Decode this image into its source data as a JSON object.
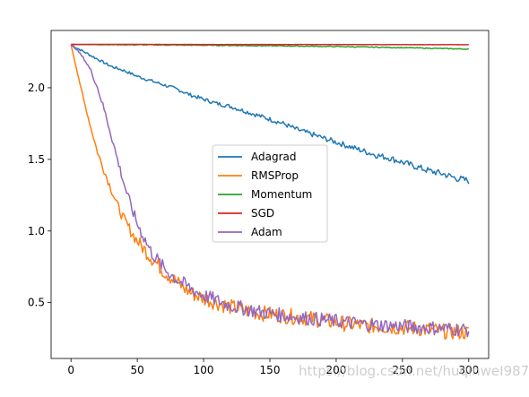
{
  "chart_data": {
    "type": "line",
    "title": "",
    "xlabel": "",
    "ylabel": "",
    "xlim": [
      -15,
      315
    ],
    "ylim": [
      0.11,
      2.4
    ],
    "x_ticks": [
      0,
      50,
      100,
      150,
      200,
      250,
      300
    ],
    "y_ticks": [
      0.5,
      1.0,
      1.5,
      2.0
    ],
    "x_tick_labels": [
      "0",
      "50",
      "100",
      "150",
      "200",
      "250",
      "300"
    ],
    "y_tick_labels": [
      "0.5",
      "1.0",
      "1.5",
      "2.0"
    ],
    "legend_position": "center",
    "grid": false,
    "series": [
      {
        "name": "Adagrad",
        "color": "#1f77b4",
        "x": [
          0,
          10,
          20,
          30,
          40,
          50,
          60,
          70,
          80,
          90,
          100,
          110,
          120,
          130,
          140,
          150,
          160,
          170,
          180,
          190,
          200,
          210,
          220,
          230,
          240,
          250,
          260,
          270,
          280,
          290,
          300
        ],
        "y": [
          2.3,
          2.25,
          2.2,
          2.15,
          2.12,
          2.08,
          2.05,
          2.02,
          1.99,
          1.95,
          1.92,
          1.89,
          1.87,
          1.84,
          1.81,
          1.78,
          1.75,
          1.71,
          1.68,
          1.65,
          1.62,
          1.59,
          1.56,
          1.53,
          1.51,
          1.48,
          1.45,
          1.42,
          1.4,
          1.37,
          1.35
        ]
      },
      {
        "name": "RMSProp",
        "color": "#ff7f0e",
        "x": [
          0,
          5,
          10,
          15,
          20,
          25,
          30,
          35,
          40,
          45,
          50,
          60,
          70,
          80,
          90,
          100,
          120,
          140,
          160,
          180,
          200,
          220,
          240,
          260,
          280,
          300
        ],
        "y": [
          2.3,
          2.1,
          1.9,
          1.72,
          1.55,
          1.42,
          1.3,
          1.18,
          1.08,
          1.0,
          0.93,
          0.82,
          0.72,
          0.64,
          0.57,
          0.53,
          0.47,
          0.43,
          0.41,
          0.39,
          0.36,
          0.34,
          0.33,
          0.32,
          0.3,
          0.29
        ]
      },
      {
        "name": "Momentum",
        "color": "#2ca02c",
        "x": [
          0,
          50,
          100,
          150,
          200,
          250,
          300
        ],
        "y": [
          2.302,
          2.3,
          2.297,
          2.293,
          2.288,
          2.28,
          2.27
        ]
      },
      {
        "name": "SGD",
        "color": "#d62728",
        "x": [
          0,
          50,
          100,
          150,
          200,
          250,
          300
        ],
        "y": [
          2.303,
          2.303,
          2.302,
          2.302,
          2.302,
          2.301,
          2.301
        ]
      },
      {
        "name": "Adam",
        "color": "#9467bd",
        "x": [
          0,
          5,
          10,
          15,
          20,
          25,
          30,
          35,
          40,
          45,
          50,
          60,
          70,
          80,
          90,
          100,
          120,
          140,
          160,
          180,
          200,
          220,
          240,
          260,
          280,
          300
        ],
        "y": [
          2.3,
          2.26,
          2.2,
          2.12,
          2.0,
          1.85,
          1.68,
          1.5,
          1.33,
          1.18,
          1.05,
          0.86,
          0.74,
          0.66,
          0.6,
          0.55,
          0.48,
          0.44,
          0.41,
          0.39,
          0.37,
          0.35,
          0.34,
          0.33,
          0.32,
          0.31
        ]
      }
    ]
  },
  "watermark": "https://blog.csdn.net/huqinweI987"
}
